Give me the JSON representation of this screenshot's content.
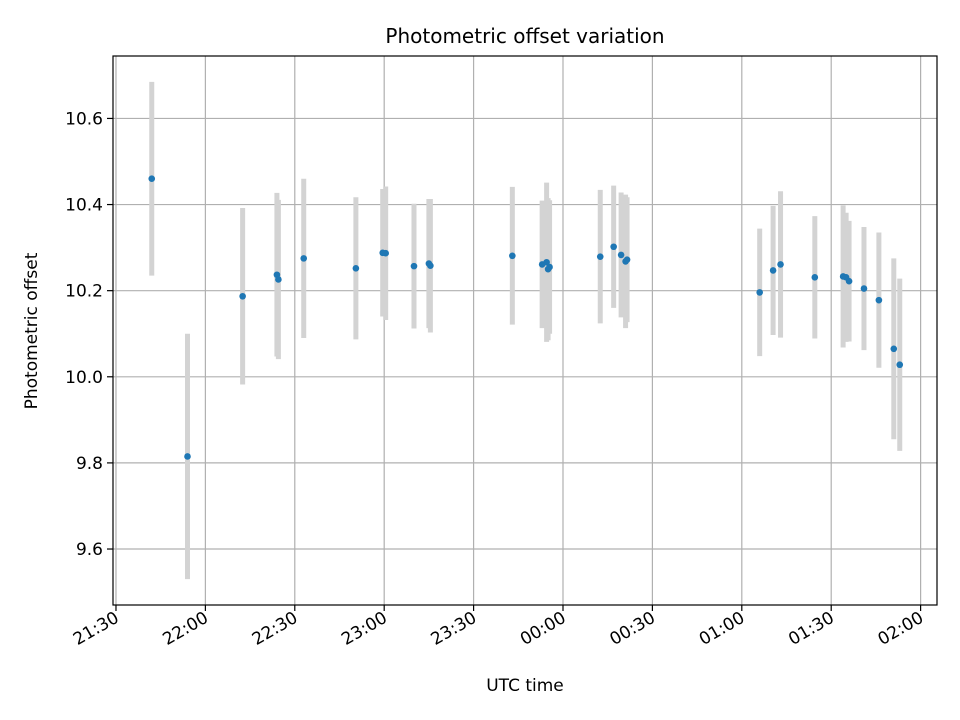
{
  "chart_data": {
    "type": "scatter",
    "title": "Photometric offset variation",
    "xlabel": "UTC time",
    "ylabel": "Photometric offset",
    "x_axis_type": "time",
    "x_range": [
      "21:30",
      "02:05"
    ],
    "ylim": [
      9.47,
      10.745
    ],
    "grid": true,
    "x_ticks": [
      "21:30",
      "22:00",
      "22:30",
      "23:00",
      "23:30",
      "00:00",
      "00:30",
      "01:00",
      "01:30",
      "02:00"
    ],
    "y_ticks": [
      9.6,
      9.8,
      10.0,
      10.2,
      10.4,
      10.6
    ],
    "y_tick_labels": [
      "9.6",
      "9.8",
      "10.0",
      "10.2",
      "10.4",
      "10.6"
    ],
    "colors": {
      "point": "#1f77b4",
      "errorbar": "#d3d3d3",
      "grid": "#b0b0b0"
    },
    "series": [
      {
        "points": [
          {
            "x": "21:42:00",
            "y": 10.46,
            "err": 0.225
          },
          {
            "x": "21:54:00",
            "y": 9.815,
            "err": 0.285
          },
          {
            "x": "22:12:30",
            "y": 10.187,
            "err": 0.205
          },
          {
            "x": "22:24:00",
            "y": 10.237,
            "err": 0.19
          },
          {
            "x": "22:24:30",
            "y": 10.226,
            "err": 0.185
          },
          {
            "x": "22:33:00",
            "y": 10.275,
            "err": 0.185
          },
          {
            "x": "22:50:30",
            "y": 10.252,
            "err": 0.165
          },
          {
            "x": "22:59:30",
            "y": 10.288,
            "err": 0.148
          },
          {
            "x": "23:00:30",
            "y": 10.287,
            "err": 0.155
          },
          {
            "x": "23:10:00",
            "y": 10.257,
            "err": 0.145
          },
          {
            "x": "23:15:00",
            "y": 10.263,
            "err": 0.15
          },
          {
            "x": "23:15:30",
            "y": 10.258,
            "err": 0.155
          },
          {
            "x": "23:43:00",
            "y": 10.281,
            "err": 0.16
          },
          {
            "x": "23:53:00",
            "y": 10.261,
            "err": 0.148
          },
          {
            "x": "23:54:30",
            "y": 10.266,
            "err": 0.185
          },
          {
            "x": "23:55:00",
            "y": 10.25,
            "err": 0.165
          },
          {
            "x": "23:55:30",
            "y": 10.255,
            "err": 0.155
          },
          {
            "x": "00:12:30",
            "y": 10.279,
            "err": 0.155
          },
          {
            "x": "00:17:00",
            "y": 10.302,
            "err": 0.142
          },
          {
            "x": "00:19:30",
            "y": 10.283,
            "err": 0.145
          },
          {
            "x": "00:21:00",
            "y": 10.268,
            "err": 0.155
          },
          {
            "x": "00:21:30",
            "y": 10.272,
            "err": 0.145
          },
          {
            "x": "01:06:00",
            "y": 10.196,
            "err": 0.148
          },
          {
            "x": "01:10:30",
            "y": 10.247,
            "err": 0.15
          },
          {
            "x": "01:13:00",
            "y": 10.261,
            "err": 0.17
          },
          {
            "x": "01:24:30",
            "y": 10.231,
            "err": 0.142
          },
          {
            "x": "01:34:00",
            "y": 10.233,
            "err": 0.165
          },
          {
            "x": "01:35:00",
            "y": 10.231,
            "err": 0.15
          },
          {
            "x": "01:36:00",
            "y": 10.222,
            "err": 0.14
          },
          {
            "x": "01:41:00",
            "y": 10.205,
            "err": 0.143
          },
          {
            "x": "01:46:00",
            "y": 10.178,
            "err": 0.157
          },
          {
            "x": "01:51:00",
            "y": 10.065,
            "err": 0.21
          },
          {
            "x": "01:53:00",
            "y": 10.028,
            "err": 0.2
          }
        ]
      }
    ]
  }
}
